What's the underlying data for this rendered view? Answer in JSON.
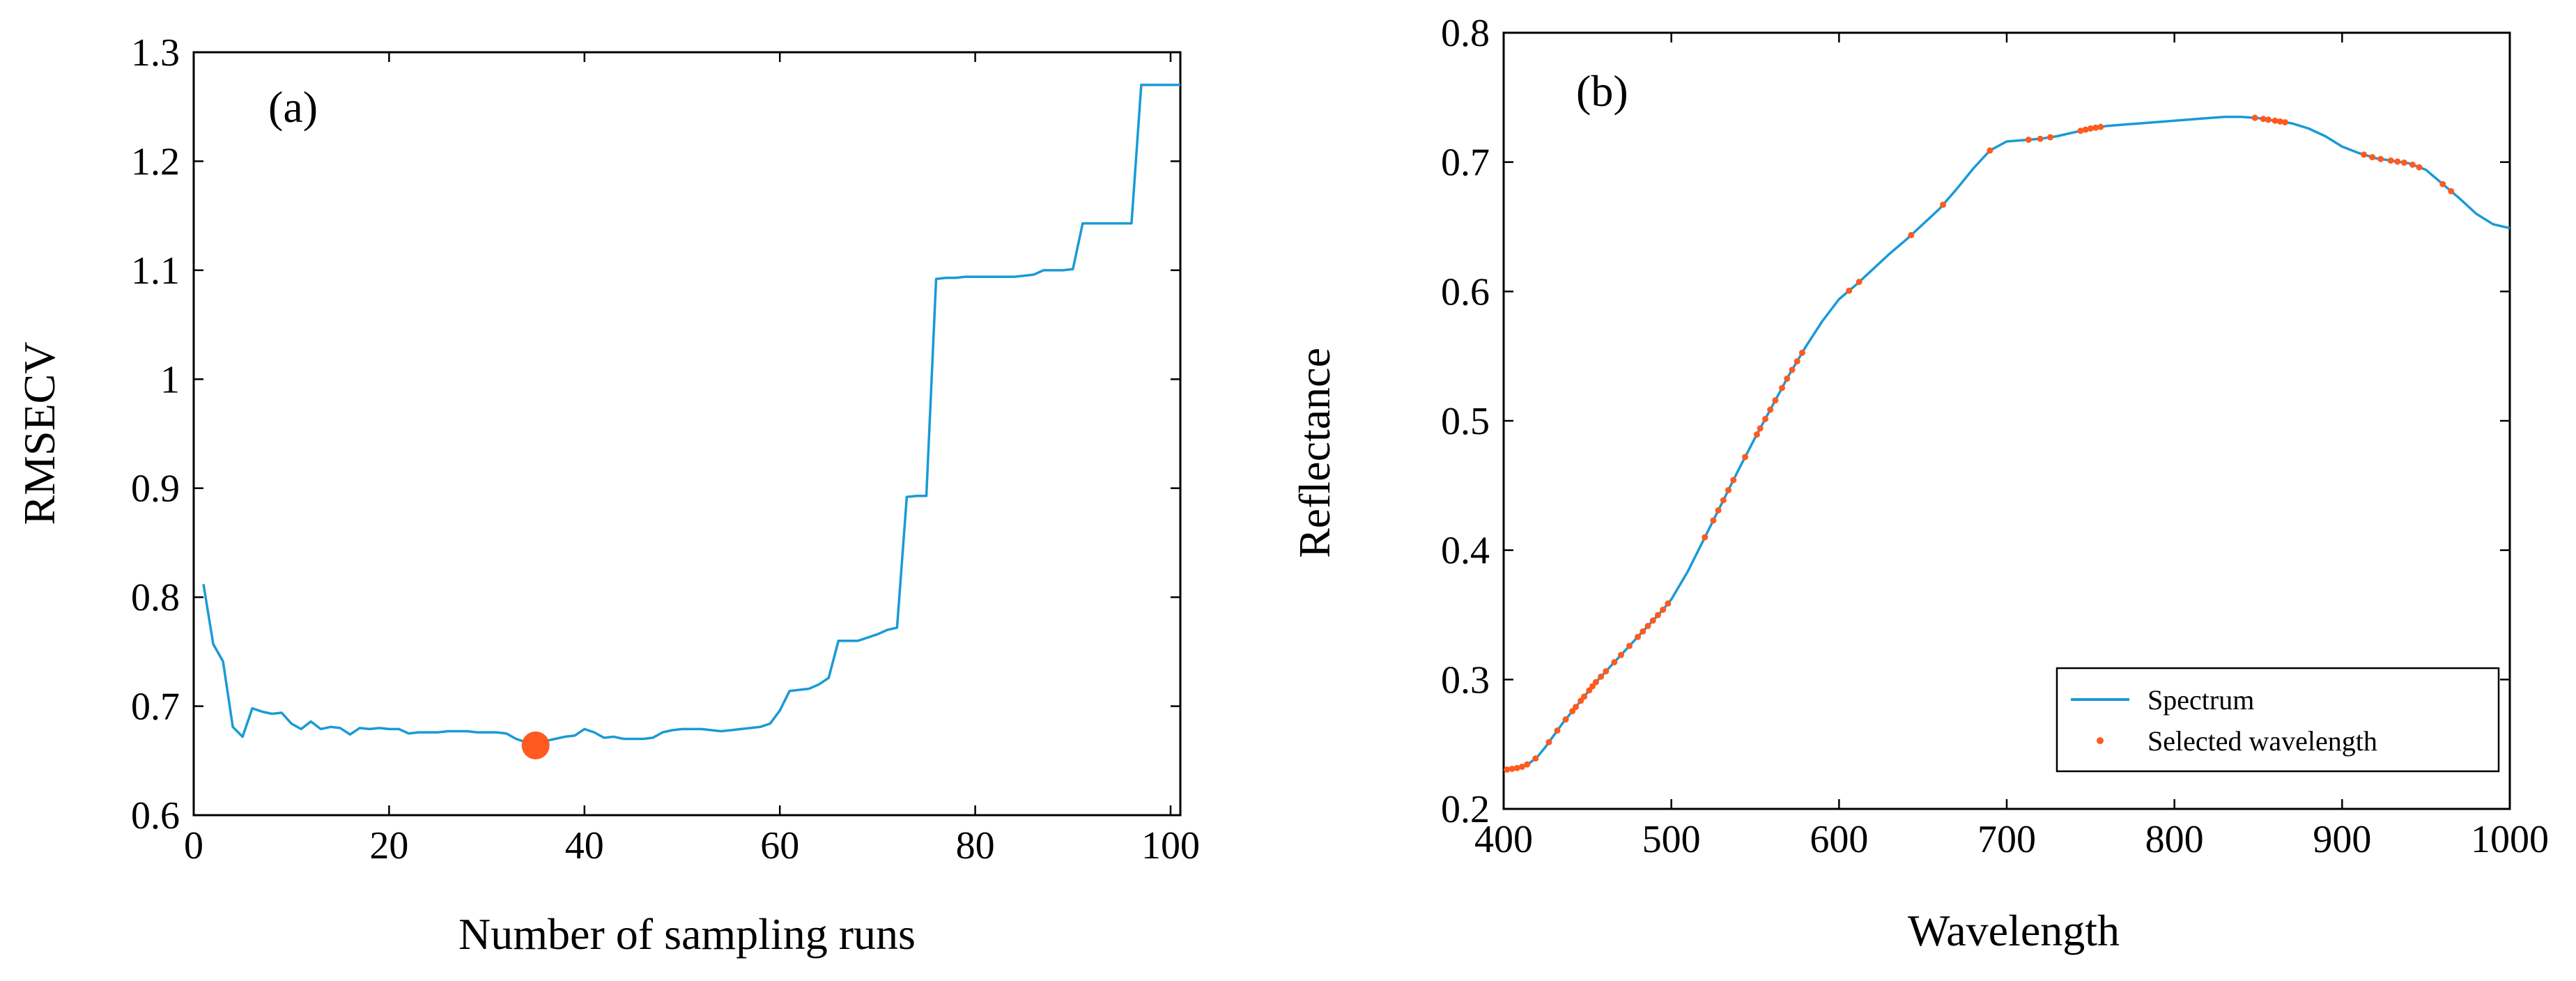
{
  "chart_data": [
    {
      "type": "line",
      "panel_label": "(a)",
      "xlabel": "Number of sampling runs",
      "ylabel": "RMSECV",
      "xlim": [
        0,
        101
      ],
      "ylim": [
        0.6,
        1.3
      ],
      "xticks": [
        0,
        20,
        40,
        60,
        80,
        100
      ],
      "yticks": [
        0.6,
        0.7,
        0.8,
        0.9,
        1,
        1.1,
        1.2,
        1.3
      ],
      "line_color": "#1a9ad6",
      "marker_color": "#ff5a1f",
      "series": [
        {
          "name": "RMSECV",
          "x": [
            1,
            2,
            3,
            4,
            5,
            6,
            7,
            8,
            9,
            10,
            11,
            12,
            13,
            14,
            15,
            16,
            17,
            18,
            19,
            20,
            21,
            22,
            23,
            24,
            25,
            26,
            27,
            28,
            29,
            30,
            31,
            32,
            33,
            34,
            35,
            36,
            37,
            38,
            39,
            40,
            41,
            42,
            43,
            44,
            45,
            46,
            47,
            48,
            49,
            50,
            51,
            52,
            53,
            54,
            55,
            56,
            57,
            58,
            59,
            60,
            61,
            62,
            63,
            64,
            65,
            66,
            67,
            68,
            69,
            70,
            71,
            72,
            73,
            74,
            75,
            76,
            77,
            78,
            79,
            80,
            81,
            82,
            83,
            84,
            85,
            86,
            87,
            88,
            89,
            90,
            91,
            92,
            93,
            94,
            95,
            96,
            97,
            98,
            99,
            100,
            101
          ],
          "values": [
            0.812,
            0.757,
            0.741,
            0.681,
            0.672,
            0.698,
            0.695,
            0.693,
            0.694,
            0.684,
            0.679,
            0.686,
            0.679,
            0.681,
            0.68,
            0.674,
            0.68,
            0.679,
            0.68,
            0.679,
            0.679,
            0.675,
            0.676,
            0.676,
            0.676,
            0.677,
            0.677,
            0.677,
            0.676,
            0.676,
            0.676,
            0.675,
            0.67,
            0.667,
            0.664,
            0.668,
            0.67,
            0.672,
            0.673,
            0.679,
            0.676,
            0.671,
            0.672,
            0.67,
            0.67,
            0.67,
            0.671,
            0.676,
            0.678,
            0.679,
            0.679,
            0.679,
            0.678,
            0.677,
            0.678,
            0.679,
            0.68,
            0.681,
            0.684,
            0.696,
            0.714,
            0.715,
            0.716,
            0.72,
            0.726,
            0.76,
            0.76,
            0.76,
            0.763,
            0.766,
            0.77,
            0.772,
            0.892,
            0.893,
            0.893,
            1.092,
            1.093,
            1.093,
            1.094,
            1.094,
            1.094,
            1.094,
            1.094,
            1.094,
            1.095,
            1.096,
            1.1,
            1.1,
            1.1,
            1.101,
            1.143,
            1.143,
            1.143,
            1.143,
            1.143,
            1.143,
            1.27,
            1.27,
            1.27,
            1.27,
            1.27
          ]
        }
      ],
      "highlight_point": {
        "x": 35,
        "y": 0.664
      }
    },
    {
      "type": "line",
      "panel_label": "(b)",
      "xlabel": "Wavelength",
      "ylabel": "Reflectance",
      "xlim": [
        400,
        1000
      ],
      "ylim": [
        0.2,
        0.8
      ],
      "xticks": [
        400,
        500,
        600,
        700,
        800,
        900,
        1000
      ],
      "yticks": [
        0.2,
        0.3,
        0.4,
        0.5,
        0.6,
        0.7,
        0.8
      ],
      "line_color": "#1a9ad6",
      "marker_color": "#ff5a1f",
      "legend": {
        "entries": [
          "Spectrum",
          "Selected wavelength"
        ],
        "placement": "bottom-right"
      },
      "series": [
        {
          "name": "Spectrum",
          "x": [
            400,
            405,
            410,
            415,
            420,
            425,
            430,
            435,
            440,
            445,
            450,
            455,
            460,
            465,
            470,
            475,
            480,
            485,
            490,
            495,
            500,
            510,
            520,
            530,
            540,
            550,
            560,
            570,
            580,
            590,
            600,
            610,
            620,
            630,
            640,
            650,
            660,
            670,
            680,
            690,
            700,
            710,
            720,
            730,
            740,
            750,
            760,
            770,
            780,
            790,
            800,
            810,
            820,
            830,
            840,
            850,
            860,
            870,
            880,
            890,
            900,
            910,
            920,
            930,
            940,
            950,
            960,
            970,
            980,
            990,
            1000
          ],
          "values": [
            0.23,
            0.231,
            0.232,
            0.235,
            0.24,
            0.248,
            0.257,
            0.266,
            0.274,
            0.282,
            0.29,
            0.298,
            0.305,
            0.312,
            0.319,
            0.326,
            0.333,
            0.34,
            0.347,
            0.354,
            0.362,
            0.384,
            0.41,
            0.436,
            0.462,
            0.487,
            0.511,
            0.535,
            0.557,
            0.577,
            0.594,
            0.605,
            0.617,
            0.629,
            0.64,
            0.652,
            0.664,
            0.679,
            0.695,
            0.709,
            0.716,
            0.717,
            0.718,
            0.72,
            0.723,
            0.726,
            0.728,
            0.729,
            0.73,
            0.731,
            0.732,
            0.733,
            0.734,
            0.735,
            0.735,
            0.734,
            0.732,
            0.73,
            0.726,
            0.72,
            0.712,
            0.707,
            0.703,
            0.701,
            0.699,
            0.694,
            0.683,
            0.672,
            0.66,
            0.652,
            0.649
          ]
        },
        {
          "name": "Selected wavelength",
          "x": [
            402,
            405,
            408,
            411,
            414,
            419,
            427,
            432,
            437,
            441,
            443,
            446,
            448,
            451,
            453,
            455,
            458,
            461,
            466,
            470,
            475,
            480,
            483,
            486,
            489,
            492,
            495,
            498,
            520,
            525,
            528,
            531,
            534,
            537,
            544,
            551,
            553,
            556,
            559,
            562,
            566,
            569,
            572,
            575,
            578,
            606,
            612,
            643,
            662,
            690,
            713,
            720,
            726,
            744,
            747,
            750,
            753,
            756,
            848,
            853,
            856,
            860,
            863,
            866,
            913,
            918,
            923,
            929,
            933,
            937,
            942,
            946,
            960,
            965
          ],
          "values": null
        }
      ]
    }
  ]
}
